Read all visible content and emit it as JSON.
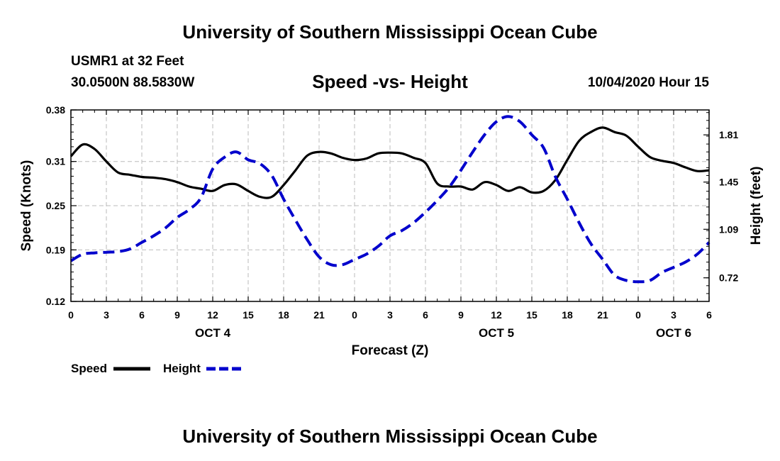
{
  "header": {
    "title": "University of Southern Mississippi Ocean Cube",
    "station": "USMR1 at 32 Feet",
    "coordinates": "30.0500N 88.5830W",
    "subtitle": "Speed -vs- Height",
    "datetime": "10/04/2020 Hour 15"
  },
  "footer": {
    "title": "University of Southern Mississippi Ocean Cube"
  },
  "colors": {
    "speed": "#000000",
    "height": "#0000cc",
    "grid": "#bbbbbb"
  },
  "chart_data": {
    "type": "line",
    "title": "Speed -vs- Height",
    "xlabel": "Forecast (Z)",
    "ylabel": "Speed (Knots)",
    "y2label": "Height (feet)",
    "xlim": [
      0,
      54
    ],
    "ylim": [
      0.12,
      0.38
    ],
    "y2lim": [
      0.54,
      2.0
    ],
    "x_ticks": [
      0,
      3,
      6,
      9,
      12,
      15,
      18,
      21,
      24,
      27,
      30,
      33,
      36,
      39,
      42,
      45,
      48,
      51,
      54
    ],
    "x_tick_labels": [
      "0",
      "3",
      "6",
      "9",
      "12",
      "15",
      "18",
      "21",
      "0",
      "3",
      "6",
      "9",
      "12",
      "15",
      "18",
      "21",
      "0",
      "3",
      "6"
    ],
    "y_ticks": [
      0.12,
      0.19,
      0.25,
      0.31,
      0.38
    ],
    "y_tick_labels": [
      "0.12",
      "0.19",
      "0.25",
      "0.31",
      "0.38"
    ],
    "y2_ticks": [
      0.72,
      1.09,
      1.45,
      1.81
    ],
    "y2_tick_labels": [
      "0.72",
      "1.09",
      "1.45",
      "1.81"
    ],
    "date_labels": [
      {
        "x": 12,
        "label": "OCT 4"
      },
      {
        "x": 36,
        "label": "OCT 5"
      },
      {
        "x": 51,
        "label": "OCT 6"
      }
    ],
    "grid": true,
    "legend": {
      "position": "bottom-left",
      "entries": [
        "Speed",
        "Height"
      ]
    },
    "series": [
      {
        "name": "Speed",
        "axis": "left",
        "style": "solid",
        "x": [
          0,
          1,
          2,
          3,
          4,
          5,
          6,
          7,
          8,
          9,
          10,
          11,
          12,
          13,
          14,
          15,
          16,
          17,
          18,
          19,
          20,
          21,
          22,
          23,
          24,
          25,
          26,
          27,
          28,
          29,
          30,
          31,
          32,
          33,
          34,
          35,
          36,
          37,
          38,
          39,
          40,
          41,
          42,
          43,
          44,
          45,
          46,
          47,
          48,
          49,
          50,
          51,
          52,
          53,
          54
        ],
        "values": [
          0.317,
          0.333,
          0.327,
          0.31,
          0.295,
          0.292,
          0.289,
          0.288,
          0.286,
          0.282,
          0.276,
          0.273,
          0.27,
          0.278,
          0.279,
          0.27,
          0.262,
          0.262,
          0.278,
          0.298,
          0.318,
          0.323,
          0.321,
          0.315,
          0.312,
          0.314,
          0.321,
          0.322,
          0.321,
          0.315,
          0.308,
          0.28,
          0.276,
          0.276,
          0.272,
          0.282,
          0.278,
          0.27,
          0.275,
          0.268,
          0.27,
          0.285,
          0.312,
          0.338,
          0.35,
          0.356,
          0.35,
          0.345,
          0.33,
          0.316,
          0.311,
          0.308,
          0.302,
          0.297,
          0.298
        ]
      },
      {
        "name": "Height",
        "axis": "right",
        "style": "dashed",
        "x": [
          0,
          1,
          2,
          3,
          4,
          5,
          6,
          7,
          8,
          9,
          10,
          11,
          12,
          13,
          14,
          15,
          16,
          17,
          18,
          19,
          20,
          21,
          22,
          23,
          24,
          25,
          26,
          27,
          28,
          29,
          30,
          31,
          32,
          33,
          34,
          35,
          36,
          37,
          38,
          39,
          40,
          41,
          42,
          43,
          44,
          45,
          46,
          47,
          48,
          49,
          50,
          51,
          52,
          53,
          54
        ],
        "values": [
          0.85,
          0.9,
          0.91,
          0.915,
          0.92,
          0.94,
          0.99,
          1.04,
          1.1,
          1.18,
          1.24,
          1.33,
          1.55,
          1.64,
          1.68,
          1.62,
          1.59,
          1.5,
          1.32,
          1.16,
          1.01,
          0.88,
          0.82,
          0.82,
          0.86,
          0.9,
          0.96,
          1.04,
          1.08,
          1.14,
          1.22,
          1.31,
          1.41,
          1.54,
          1.68,
          1.81,
          1.91,
          1.95,
          1.91,
          1.81,
          1.71,
          1.49,
          1.32,
          1.14,
          0.98,
          0.86,
          0.74,
          0.7,
          0.69,
          0.7,
          0.76,
          0.8,
          0.84,
          0.9,
          0.99
        ]
      }
    ]
  }
}
